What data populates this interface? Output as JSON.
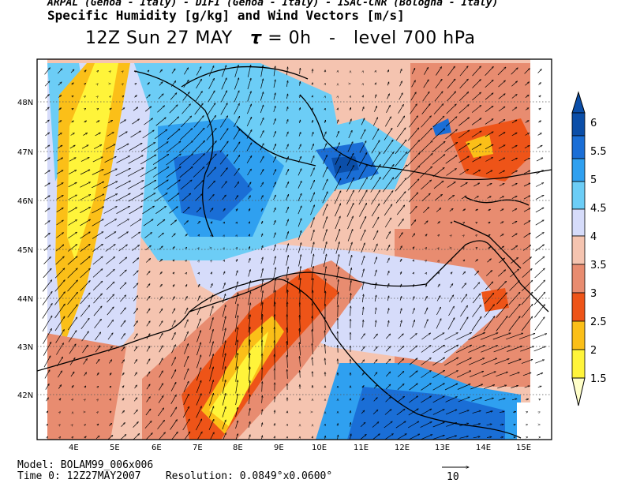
{
  "header": {
    "credits": "ARPAL (Genoa - Italy) - DIFI (Genoa - Italy) - ISAC-CNR (Bologna - Italy)",
    "title": "Specific Humidity [g/kg] and Wind Vectors [m/s]",
    "time_label": "12Z Sun 27 MAY",
    "tau_symbol": "τ",
    "tau_value": "= 0h",
    "separator": "-",
    "level_label": "level 700 hPa"
  },
  "map": {
    "lat_ticks": [
      "48N",
      "47N",
      "46N",
      "45N",
      "44N",
      "43N",
      "42N"
    ],
    "lon_ticks": [
      "4E",
      "5E",
      "6E",
      "7E",
      "8E",
      "9E",
      "10E",
      "11E",
      "12E",
      "13E",
      "14E",
      "15E"
    ],
    "wind_direction": "south-westerly",
    "coastline_color": "#000000"
  },
  "colorbar": {
    "labels": [
      "6",
      "5.5",
      "5",
      "4.5",
      "4",
      "3.5",
      "3",
      "2.5",
      "2",
      "1.5"
    ],
    "colors": [
      "#0b4ea8",
      "#1a6ed6",
      "#2fa0f0",
      "#6ccdf6",
      "#d6dcfa",
      "#f5c4b0",
      "#e88c70",
      "#ee5418",
      "#fbbf18",
      "#fff43a",
      "#ffffc8"
    ]
  },
  "footer": {
    "model_label": "Model:",
    "model_value": "BOLAM99_006x006",
    "time_label": "Time 0:",
    "time_value": "12Z27MAY2007",
    "resolution_label": "Resolution:",
    "resolution_value": "0.0849°x0.0600°",
    "vector_scale": "10"
  }
}
